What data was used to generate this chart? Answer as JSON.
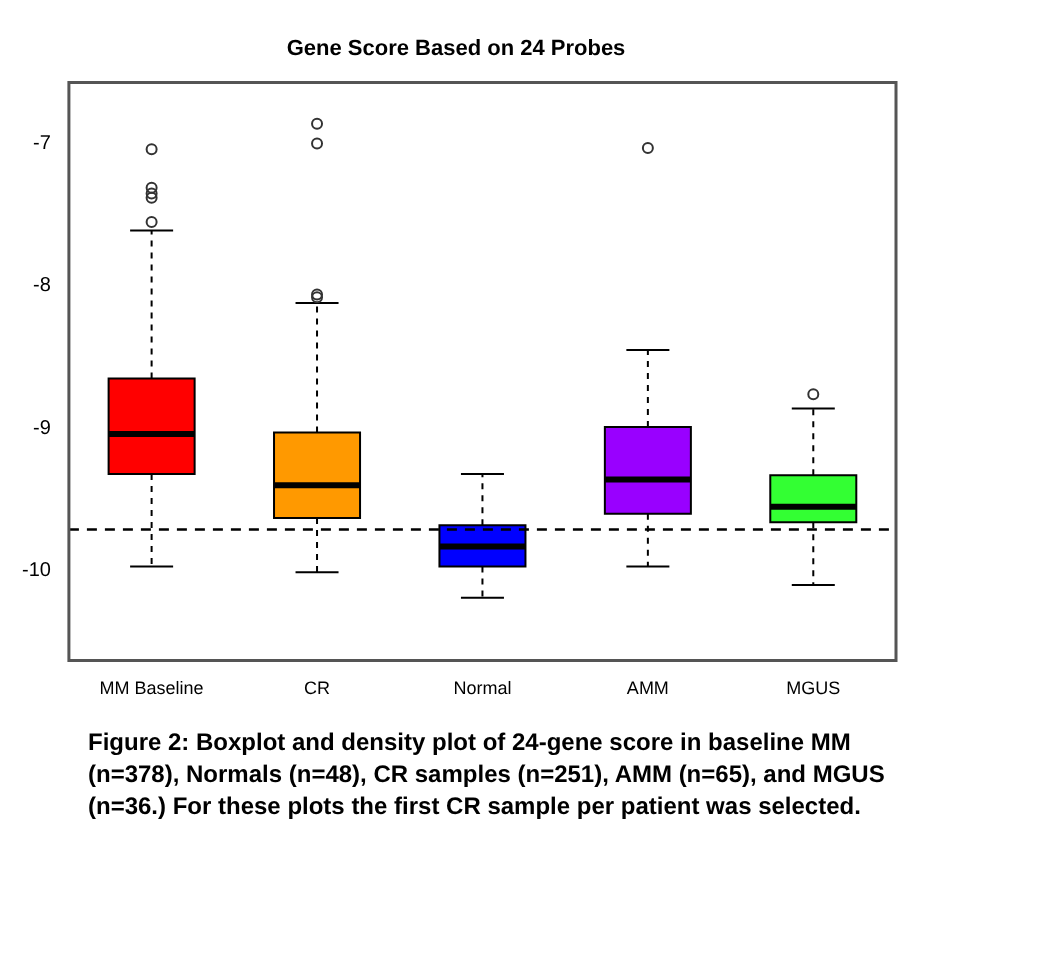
{
  "chart_data": {
    "type": "box",
    "title": "Gene Score Based on 24 Probes",
    "categories": [
      "MM Baseline",
      "CR",
      "Normal",
      "AMM",
      "MGUS"
    ],
    "colors": [
      "#ff0000",
      "#ff9900",
      "#0000ff",
      "#9900ff",
      "#33ff33"
    ],
    "boxes": [
      {
        "low": -9.97,
        "q1": -9.32,
        "median": -9.04,
        "q3": -8.65,
        "high": -7.61,
        "outliers": [
          -7.04,
          -7.31,
          -7.35,
          -7.38,
          -7.55
        ]
      },
      {
        "low": -10.01,
        "q1": -9.63,
        "median": -9.4,
        "q3": -9.03,
        "high": -8.12,
        "outliers": [
          -6.86,
          -7.0,
          -8.06,
          -8.08
        ]
      },
      {
        "low": -10.19,
        "q1": -9.97,
        "median": -9.83,
        "q3": -9.68,
        "high": -9.32
      },
      {
        "low": -9.97,
        "q1": -9.6,
        "median": -9.36,
        "q3": -8.99,
        "high": -8.45,
        "outliers": [
          -7.03
        ]
      },
      {
        "low": -10.1,
        "q1": -9.66,
        "median": -9.55,
        "q3": -9.33,
        "high": -8.86,
        "outliers": [
          -8.76
        ]
      }
    ],
    "ylim": [
      -10.63,
      -6.57
    ],
    "yticks": [
      -10,
      -9,
      -8,
      -7
    ],
    "ref_lines": [
      {
        "axis": "y",
        "value": -9.71,
        "line_style": "dashed",
        "color": "#000000"
      }
    ],
    "annotations": [
      "Figure 2: Boxplot and density plot of 24-gene score in baseline MM (n=378), Normals (n=48), CR samples (n=251), AMM (n=65), and MGUS (n=36.)  For these plots the first CR sample per patient was selected."
    ]
  }
}
